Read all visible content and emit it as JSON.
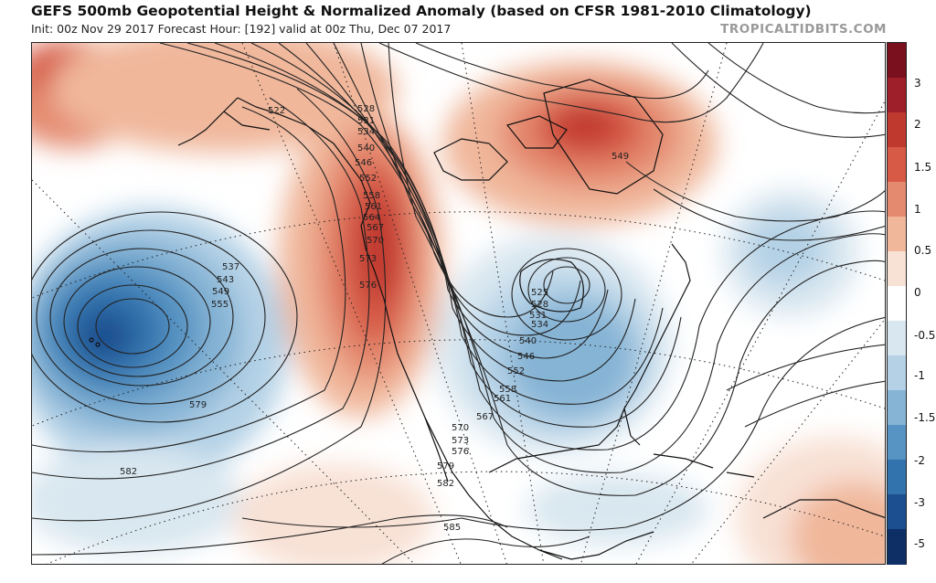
{
  "header": {
    "title": "GEFS 500mb Geopotential Height & Normalized Anomaly (based on CFSR 1981-2010 Climatology)",
    "subtitle": "Init: 00z Nov 29 2017   Forecast Hour: [192]   valid at 00z Thu, Dec 07 2017",
    "brand": "TROPICALTIDBITS.COM"
  },
  "colorbar": {
    "ticks": [
      "3",
      "2",
      "1.5",
      "1",
      "0.5",
      "0",
      "-0.5",
      "-1",
      "-1.5",
      "-2",
      "-3",
      "-5"
    ],
    "colors": [
      "#7a0f1e",
      "#9e1f2a",
      "#c0392f",
      "#d65a46",
      "#e48a6f",
      "#f0b79b",
      "#f8e1d5",
      "#ffffff",
      "#d9e7f0",
      "#b4d1e6",
      "#86b4d5",
      "#5894c3",
      "#3272ad",
      "#1b4f8f",
      "#0d2f66"
    ]
  },
  "contour_labels": [
    {
      "text": "522",
      "name": "label-522"
    },
    {
      "text": "528",
      "name": "label-528"
    },
    {
      "text": "531",
      "name": "label-531"
    },
    {
      "text": "534",
      "name": "label-534"
    },
    {
      "text": "540",
      "name": "label-540"
    },
    {
      "text": "546",
      "name": "label-546"
    },
    {
      "text": "552",
      "name": "label-552"
    },
    {
      "text": "558",
      "name": "label-558"
    },
    {
      "text": "561",
      "name": "label-561"
    },
    {
      "text": "564",
      "name": "label-564"
    },
    {
      "text": "567",
      "name": "label-567"
    },
    {
      "text": "570",
      "name": "label-570"
    },
    {
      "text": "573",
      "name": "label-573"
    },
    {
      "text": "576",
      "name": "label-576"
    },
    {
      "text": "549",
      "name": "label-549-greenland"
    },
    {
      "text": "537",
      "name": "label-537-pacific"
    },
    {
      "text": "543",
      "name": "label-543-pacific"
    },
    {
      "text": "549",
      "name": "label-549-pacific"
    },
    {
      "text": "555",
      "name": "label-555-pacific"
    },
    {
      "text": "579",
      "name": "label-579-pacific"
    },
    {
      "text": "582",
      "name": "label-582-pacific"
    },
    {
      "text": "525",
      "name": "label-525-trough"
    },
    {
      "text": "528",
      "name": "label-528-trough"
    },
    {
      "text": "531",
      "name": "label-531-trough"
    },
    {
      "text": "534",
      "name": "label-534-trough"
    },
    {
      "text": "540",
      "name": "label-540-trough"
    },
    {
      "text": "546",
      "name": "label-546-trough"
    },
    {
      "text": "552",
      "name": "label-552-trough"
    },
    {
      "text": "558",
      "name": "label-558-trough"
    },
    {
      "text": "561",
      "name": "label-561-trough"
    },
    {
      "text": "567",
      "name": "label-567-trough"
    },
    {
      "text": "570",
      "name": "label-570-trough"
    },
    {
      "text": "573",
      "name": "label-573-trough"
    },
    {
      "text": "576",
      "name": "label-576-trough"
    },
    {
      "text": "579",
      "name": "label-579-mexico"
    },
    {
      "text": "582",
      "name": "label-582-mexico"
    },
    {
      "text": "585",
      "name": "label-585-mexico"
    }
  ]
}
